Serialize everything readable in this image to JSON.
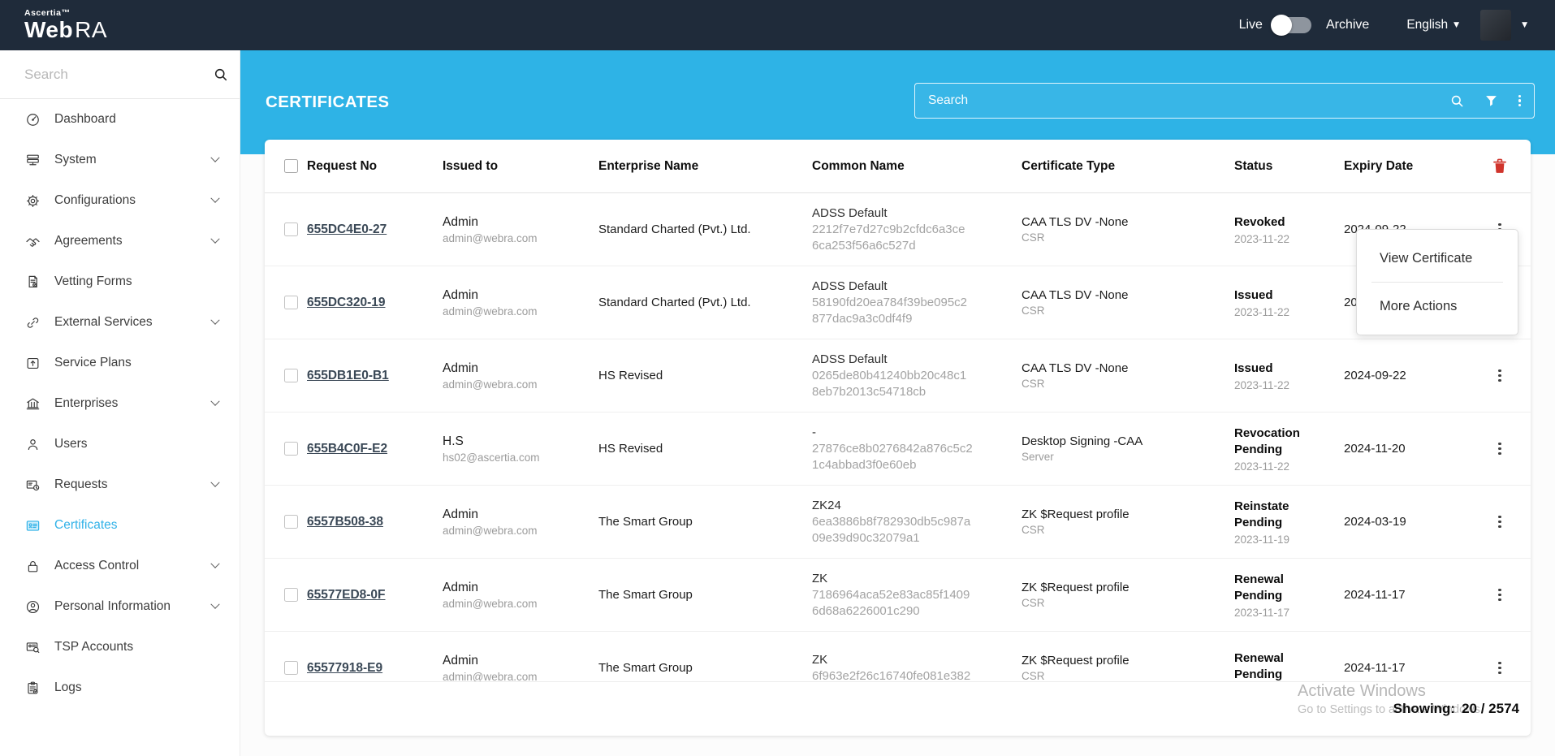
{
  "navbar": {
    "brand_top": "Ascertia™",
    "brand_primary": "Web",
    "brand_secondary": "RA",
    "live_label": "Live",
    "archive_label": "Archive",
    "language_label": "English"
  },
  "sidebar": {
    "search_placeholder": "Search",
    "items": [
      {
        "label": "Dashboard",
        "icon": "dashboard-icon",
        "expandable": false,
        "active": false
      },
      {
        "label": "System",
        "icon": "system-icon",
        "expandable": true,
        "active": false
      },
      {
        "label": "Configurations",
        "icon": "configurations-icon",
        "expandable": true,
        "active": false
      },
      {
        "label": "Agreements",
        "icon": "agreements-icon",
        "expandable": true,
        "active": false
      },
      {
        "label": "Vetting Forms",
        "icon": "vetting-forms-icon",
        "expandable": false,
        "active": false
      },
      {
        "label": "External Services",
        "icon": "external-services-icon",
        "expandable": true,
        "active": false
      },
      {
        "label": "Service Plans",
        "icon": "service-plans-icon",
        "expandable": false,
        "active": false
      },
      {
        "label": "Enterprises",
        "icon": "enterprises-icon",
        "expandable": true,
        "active": false
      },
      {
        "label": "Users",
        "icon": "users-icon",
        "expandable": false,
        "active": false
      },
      {
        "label": "Requests",
        "icon": "requests-icon",
        "expandable": true,
        "active": false
      },
      {
        "label": "Certificates",
        "icon": "certificates-icon",
        "expandable": false,
        "active": true
      },
      {
        "label": "Access Control",
        "icon": "access-control-icon",
        "expandable": true,
        "active": false
      },
      {
        "label": "Personal Information",
        "icon": "personal-information-icon",
        "expandable": true,
        "active": false
      },
      {
        "label": "TSP Accounts",
        "icon": "tsp-accounts-icon",
        "expandable": false,
        "active": false
      },
      {
        "label": "Logs",
        "icon": "logs-icon",
        "expandable": false,
        "active": false
      }
    ]
  },
  "page_header": {
    "title": "CERTIFICATES",
    "search_placeholder": "Search"
  },
  "table": {
    "columns": [
      "Request No",
      "Issued to",
      "Enterprise Name",
      "Common Name",
      "Certificate Type",
      "Status",
      "Expiry Date"
    ],
    "rows": [
      {
        "request_no": "655DC4E0-27",
        "issued_name": "Admin",
        "issued_email": "admin@webra.com",
        "enterprise": "Standard Charted (Pvt.) Ltd.",
        "common_title": "ADSS Default",
        "common_line2": "2212f7e7d27c9b2cfdc6a3ce",
        "common_line3": "6ca253f56a6c527d",
        "cert_type": "CAA TLS DV -None",
        "cert_sub": "CSR",
        "status": "Revoked",
        "status_date": "2023-11-22",
        "expiry": "2024-09-22"
      },
      {
        "request_no": "655DC320-19",
        "issued_name": "Admin",
        "issued_email": "admin@webra.com",
        "enterprise": "Standard Charted (Pvt.) Ltd.",
        "common_title": "ADSS Default",
        "common_line2": "58190fd20ea784f39be095c2",
        "common_line3": "877dac9a3c0df4f9",
        "cert_type": "CAA TLS DV -None",
        "cert_sub": "CSR",
        "status": "Issued",
        "status_date": "2023-11-22",
        "expiry": "202"
      },
      {
        "request_no": "655DB1E0-B1",
        "issued_name": "Admin",
        "issued_email": "admin@webra.com",
        "enterprise": "HS Revised",
        "common_title": "ADSS Default",
        "common_line2": "0265de80b41240bb20c48c1",
        "common_line3": "8eb7b2013c54718cb",
        "cert_type": "CAA TLS DV -None",
        "cert_sub": "CSR",
        "status": "Issued",
        "status_date": "2023-11-22",
        "expiry": "2024-09-22"
      },
      {
        "request_no": "655B4C0F-E2",
        "issued_name": "H.S",
        "issued_email": "hs02@ascertia.com",
        "enterprise": "HS Revised",
        "common_title": "-",
        "common_line2": "27876ce8b0276842a876c5c2",
        "common_line3": "1c4abbad3f0e60eb",
        "cert_type": "Desktop Signing -CAA",
        "cert_sub": "Server",
        "status": "Revocation Pending",
        "status_date": "2023-11-22",
        "expiry": "2024-11-20"
      },
      {
        "request_no": "6557B508-38",
        "issued_name": "Admin",
        "issued_email": "admin@webra.com",
        "enterprise": "The Smart Group",
        "common_title": "ZK24",
        "common_line2": "6ea3886b8f782930db5c987a",
        "common_line3": "09e39d90c32079a1",
        "cert_type": "ZK $Request profile",
        "cert_sub": "CSR",
        "status": "Reinstate Pending",
        "status_date": "2023-11-19",
        "expiry": "2024-03-19"
      },
      {
        "request_no": "65577ED8-0F",
        "issued_name": "Admin",
        "issued_email": "admin@webra.com",
        "enterprise": "The Smart Group",
        "common_title": "ZK",
        "common_line2": "7186964aca52e83ac85f1409",
        "common_line3": "6d68a6226001c290",
        "cert_type": "ZK $Request profile",
        "cert_sub": "CSR",
        "status": "Renewal Pending",
        "status_date": "2023-11-17",
        "expiry": "2024-11-17"
      },
      {
        "request_no": "65577918-E9",
        "issued_name": "Admin",
        "issued_email": "admin@webra.com",
        "enterprise": "The Smart Group",
        "common_title": "ZK",
        "common_line2": "6f963e2f26c16740fe081e382",
        "common_line3": "",
        "cert_type": "ZK $Request profile",
        "cert_sub": "CSR",
        "status": "Renewal Pending",
        "status_date": "",
        "expiry": "2024-11-17"
      }
    ]
  },
  "context_menu": {
    "items": [
      {
        "label": "View Certificate"
      },
      {
        "label": "More Actions"
      }
    ]
  },
  "footer": {
    "showing_label": "Showing:",
    "showing_value": "20 / 2574"
  },
  "watermark": {
    "line1": "Activate Windows",
    "line2": "Go to Settings to activate Windows."
  },
  "colors": {
    "navbar_bg": "#1f2b3a",
    "accent_blue": "#2eb3e6",
    "active_item": "#31b2e8",
    "danger_red": "#d0342c"
  }
}
